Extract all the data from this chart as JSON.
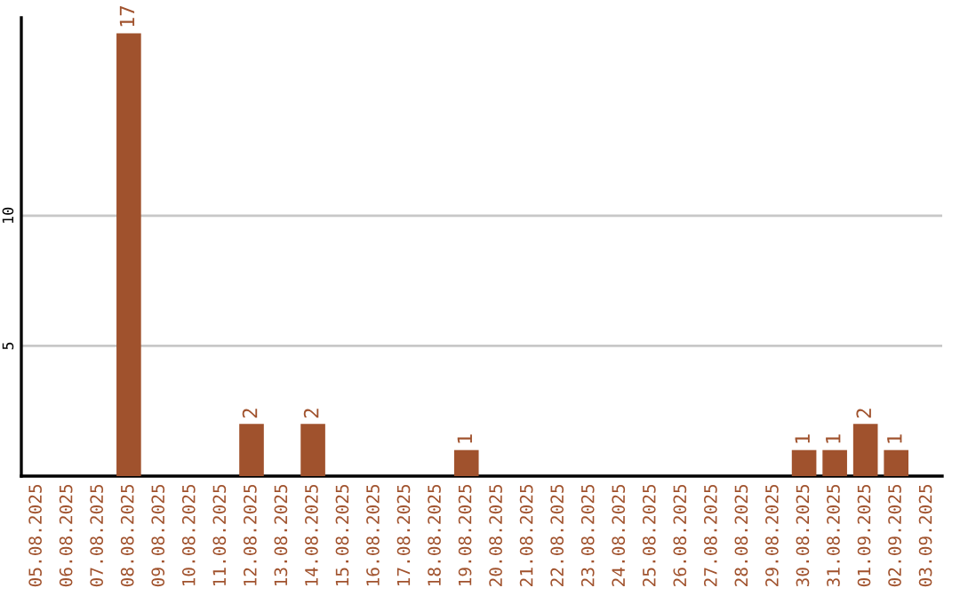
{
  "chart_data": {
    "type": "bar",
    "categories": [
      "05.08.2025",
      "06.08.2025",
      "07.08.2025",
      "08.08.2025",
      "09.08.2025",
      "10.08.2025",
      "11.08.2025",
      "12.08.2025",
      "13.08.2025",
      "14.08.2025",
      "15.08.2025",
      "16.08.2025",
      "17.08.2025",
      "18.08.2025",
      "19.08.2025",
      "20.08.2025",
      "21.08.2025",
      "22.08.2025",
      "23.08.2025",
      "24.08.2025",
      "25.08.2025",
      "26.08.2025",
      "27.08.2025",
      "28.08.2025",
      "29.08.2025",
      "30.08.2025",
      "31.08.2025",
      "01.09.2025",
      "02.09.2025",
      "03.09.2025"
    ],
    "values": [
      0,
      0,
      0,
      17,
      0,
      0,
      0,
      2,
      0,
      2,
      0,
      0,
      0,
      0,
      1,
      0,
      0,
      0,
      0,
      0,
      0,
      0,
      0,
      0,
      0,
      1,
      1,
      2,
      1,
      0
    ],
    "value_labels": [
      null,
      null,
      null,
      "17",
      null,
      null,
      null,
      "2",
      null,
      "2",
      null,
      null,
      null,
      null,
      "1",
      null,
      null,
      null,
      null,
      null,
      null,
      null,
      null,
      null,
      null,
      "1",
      "1",
      "2",
      "1",
      null
    ],
    "color": "#a0522d",
    "ylim": [
      0,
      17.6
    ],
    "yticks": [
      5,
      10
    ],
    "grid": "y"
  }
}
